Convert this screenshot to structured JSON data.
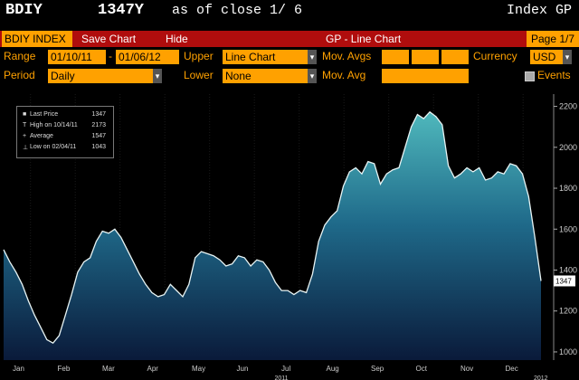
{
  "header": {
    "ticker": "BDIY",
    "price": "1347Y",
    "as_of": "as of close  1/ 6",
    "function": "Index GP"
  },
  "menubar": {
    "ticker_field": "BDIY INDEX",
    "save_chart": "Save Chart",
    "hide": "Hide",
    "title": "GP - Line Chart",
    "page": "Page 1/7"
  },
  "controls": {
    "range_label": "Range",
    "range_start": "01/10/11",
    "range_sep": "-",
    "range_end": "01/06/12",
    "upper_label": "Upper",
    "upper_value": "Line Chart",
    "mov_avgs_label": "Mov. Avgs",
    "currency_label": "Currency",
    "currency_value": "USD",
    "period_label": "Period",
    "period_value": "Daily",
    "lower_label": "Lower",
    "lower_value": "None",
    "mov_avg_label": "Mov. Avg",
    "events_label": "Events"
  },
  "legend": {
    "items": [
      {
        "icon": "■",
        "name": "Last Price",
        "value": "1347"
      },
      {
        "icon": "T",
        "name": "High on 10/14/11",
        "value": "2173"
      },
      {
        "icon": "+",
        "name": "Average",
        "value": "1547"
      },
      {
        "icon": "⊥",
        "name": "Low on 02/04/11",
        "value": "1043"
      }
    ]
  },
  "colors": {
    "accent": "#ffa100",
    "menubar": "#b00d0d",
    "line": "#e8f4f4",
    "fill_top": "#4fb8bc",
    "fill_bottom": "#0a1a3a"
  },
  "chart_data": {
    "type": "area",
    "title": "",
    "xlabel": "",
    "ylabel": "",
    "ylim": [
      960,
      2260
    ],
    "yticks": [
      1000,
      1200,
      1400,
      1600,
      1800,
      2000,
      2200
    ],
    "months": [
      "Jan",
      "Feb",
      "Mar",
      "Apr",
      "May",
      "Jun",
      "Jul",
      "Aug",
      "Sep",
      "Oct",
      "Nov",
      "Dec"
    ],
    "year_labels": [
      "2011",
      "2012"
    ],
    "last_value_label": "1347",
    "series": [
      {
        "values": [
          1500,
          1440,
          1390,
          1330,
          1250,
          1180,
          1120,
          1060,
          1043,
          1080,
          1180,
          1280,
          1390,
          1440,
          1460,
          1540,
          1590,
          1580,
          1600,
          1560,
          1500,
          1440,
          1380,
          1330,
          1290,
          1270,
          1280,
          1330,
          1300,
          1270,
          1330,
          1460,
          1490,
          1480,
          1470,
          1450,
          1420,
          1430,
          1470,
          1460,
          1420,
          1450,
          1440,
          1400,
          1340,
          1300,
          1300,
          1280,
          1300,
          1290,
          1380,
          1540,
          1620,
          1660,
          1690,
          1810,
          1880,
          1900,
          1870,
          1930,
          1920,
          1820,
          1870,
          1890,
          1900,
          2000,
          2100,
          2160,
          2140,
          2173,
          2150,
          2110,
          1910,
          1850,
          1870,
          1900,
          1880,
          1900,
          1840,
          1850,
          1880,
          1870,
          1920,
          1910,
          1870,
          1760,
          1560,
          1347
        ]
      }
    ]
  }
}
